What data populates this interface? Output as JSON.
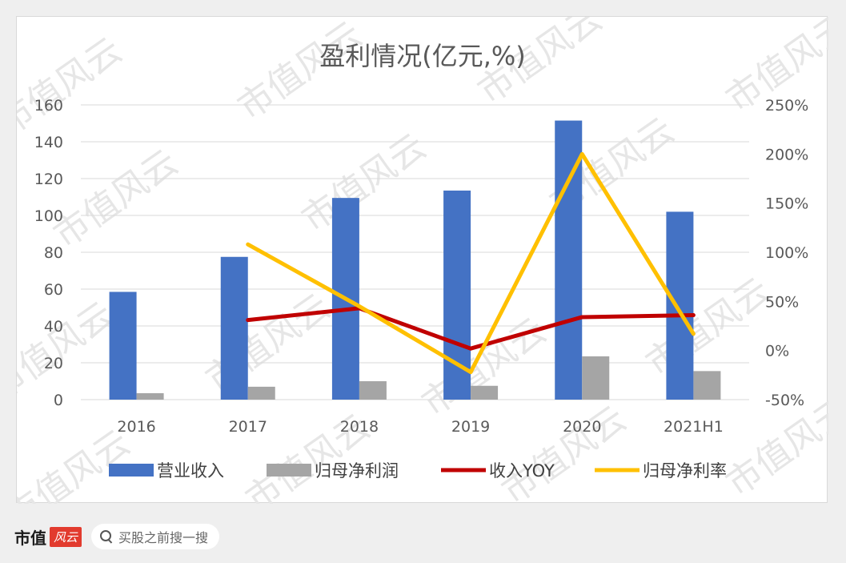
{
  "chart_data": {
    "type": "bar",
    "title": "盈利情况(亿元,%)",
    "categories": [
      "2016",
      "2017",
      "2018",
      "2019",
      "2020",
      "2021H1"
    ],
    "left_axis": {
      "ylim": [
        0,
        160
      ],
      "ticks": [
        "0",
        "20",
        "40",
        "60",
        "80",
        "100",
        "120",
        "140",
        "160"
      ]
    },
    "right_axis": {
      "ylim": [
        -50,
        250
      ],
      "ticks": [
        "-50%",
        "0%",
        "50%",
        "100%",
        "150%",
        "200%",
        "250%"
      ]
    },
    "grid": true,
    "legend_position": "bottom",
    "series": [
      {
        "name": "营业收入",
        "type": "bar",
        "axis": "left",
        "color": "#4472c4",
        "values": [
          58.5,
          77.5,
          109.5,
          113.5,
          151.5,
          102
        ]
      },
      {
        "name": "归母净利润",
        "type": "bar",
        "axis": "left",
        "color": "#a5a5a5",
        "values": [
          3.5,
          7,
          10,
          7.5,
          23.5,
          15.5
        ]
      },
      {
        "name": "收入YOY",
        "type": "line",
        "axis": "right",
        "color": "#c00000",
        "values": [
          null,
          31,
          43,
          2,
          34,
          36
        ]
      },
      {
        "name": "归母净利率",
        "type": "line",
        "axis": "right",
        "color": "#ffc000",
        "values": [
          null,
          108,
          45,
          -22,
          200,
          17
        ]
      }
    ]
  },
  "watermark": "市值风云",
  "footer": {
    "brand": "市值",
    "brand_logo": "风云",
    "search_placeholder": "买股之前搜一搜"
  }
}
